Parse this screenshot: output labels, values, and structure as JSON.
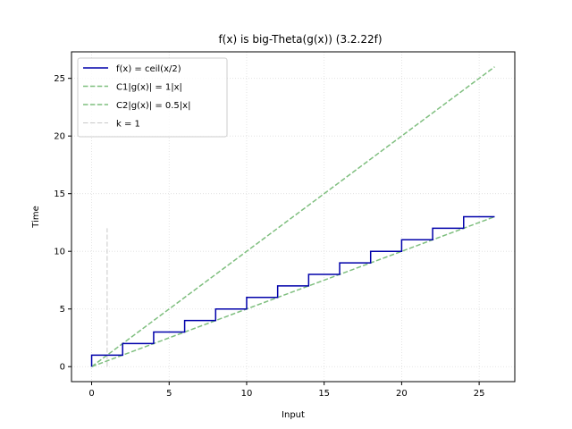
{
  "chart_data": {
    "type": "line",
    "title": "f(x) is big-Theta(g(x)) (3.2.22f)",
    "xlabel": "Input",
    "ylabel": "Time",
    "xlim": [
      -1.3,
      27.3
    ],
    "ylim": [
      -1.3,
      27.3
    ],
    "xticks": [
      0,
      5,
      10,
      15,
      20,
      25
    ],
    "yticks": [
      0,
      5,
      10,
      15,
      20,
      25
    ],
    "grid": true,
    "legend_position": "top-left",
    "series": [
      {
        "name": "f(x) = ceil(x/2)",
        "style": "step",
        "color": "#0000aa",
        "dash": "solid",
        "x": [
          0,
          0,
          2,
          2,
          4,
          4,
          6,
          6,
          8,
          8,
          10,
          10,
          12,
          12,
          14,
          14,
          16,
          16,
          18,
          18,
          20,
          20,
          22,
          22,
          24,
          24,
          26
        ],
        "y": [
          0,
          1,
          1,
          2,
          2,
          3,
          3,
          4,
          4,
          5,
          5,
          6,
          6,
          7,
          7,
          8,
          8,
          9,
          9,
          10,
          10,
          11,
          11,
          12,
          12,
          13,
          13
        ]
      },
      {
        "name": "C1|g(x)| = 1|x|",
        "style": "line",
        "color": "#7fbf7f",
        "dash": "dashed",
        "x": [
          0,
          26
        ],
        "y": [
          0,
          26
        ]
      },
      {
        "name": "C2|g(x)| = 0.5|x|",
        "style": "line",
        "color": "#7fbf7f",
        "dash": "dashed",
        "x": [
          0,
          26
        ],
        "y": [
          0,
          13
        ]
      },
      {
        "name": "k = 1",
        "style": "vline",
        "color": "#c8c8c8",
        "dash": "dashed",
        "x": [
          1,
          1
        ],
        "y": [
          0,
          12
        ]
      }
    ]
  }
}
